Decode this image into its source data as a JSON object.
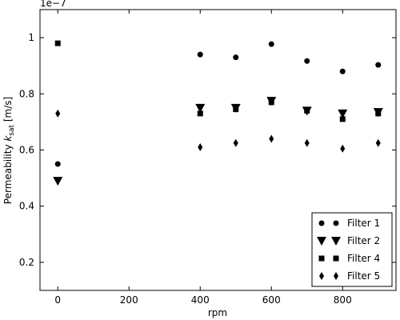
{
  "chart_data": {
    "type": "scatter",
    "xlabel": "rpm",
    "ylabel": [
      "Permeability ",
      "k",
      "sat",
      " [m/s]"
    ],
    "y_offset_label": "1e−7",
    "xlim": [
      -50,
      950
    ],
    "ylim": [
      0.1,
      1.1
    ],
    "xticks": [
      0,
      200,
      400,
      600,
      800
    ],
    "yticks": [
      0.2,
      0.4,
      0.6,
      0.8,
      1.0
    ],
    "legend": "lower right",
    "series": [
      {
        "name": "Filter 1",
        "color": "#000000",
        "marker": "o",
        "x": [
          0,
          400,
          500,
          600,
          700,
          800,
          900
        ],
        "values": [
          0.55,
          0.94,
          0.93,
          0.977,
          0.917,
          0.88,
          0.903
        ]
      },
      {
        "name": "Filter 2",
        "color": "#000000",
        "marker": "v",
        "x": [
          0,
          400,
          500,
          600,
          700,
          800,
          900
        ],
        "values": [
          0.49,
          0.75,
          0.75,
          0.775,
          0.74,
          0.73,
          0.735
        ]
      },
      {
        "name": "Filter 4",
        "color": "#000000",
        "marker": "s",
        "x": [
          0,
          400,
          500,
          600,
          700,
          800,
          900
        ],
        "values": [
          0.98,
          0.73,
          0.745,
          0.77,
          0.74,
          0.71,
          0.73
        ]
      },
      {
        "name": "Filter 5",
        "color": "#000000",
        "marker": "d",
        "x": [
          0,
          400,
          500,
          600,
          700,
          800,
          900
        ],
        "values": [
          0.73,
          0.61,
          0.625,
          0.64,
          0.625,
          0.605,
          0.625
        ]
      }
    ]
  }
}
